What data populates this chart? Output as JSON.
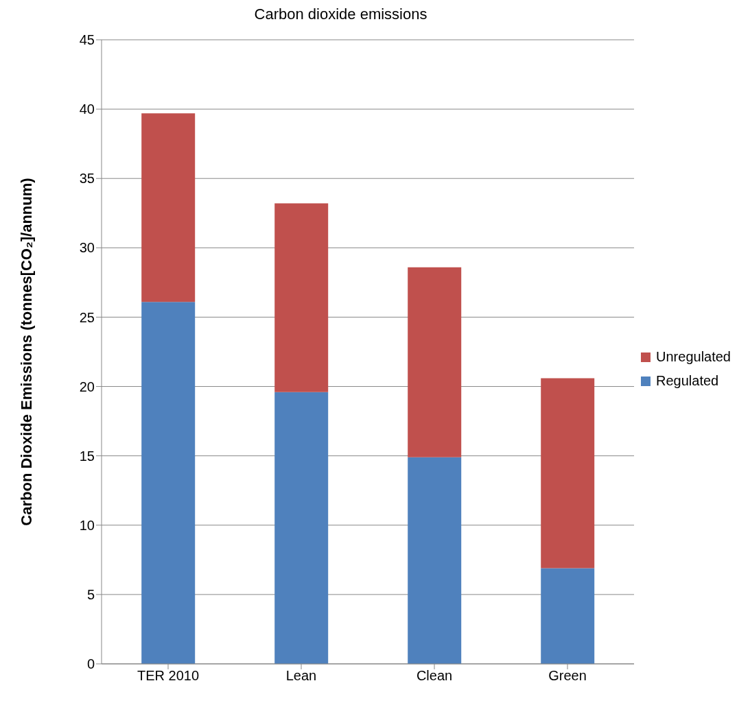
{
  "chart_data": {
    "type": "bar",
    "title": "Carbon dioxide emissions",
    "ylabel": "Carbon Dioxide Emissions  (tonnes[CO₂]/annum)",
    "categories": [
      "TER 2010",
      "Lean",
      "Clean",
      "Green"
    ],
    "stacked": true,
    "series": [
      {
        "name": "Regulated",
        "color": "#4f81bd",
        "values": [
          26.1,
          19.6,
          14.9,
          6.9
        ]
      },
      {
        "name": "Unregulated",
        "color": "#c0504d",
        "values": [
          13.6,
          13.6,
          13.7,
          13.7
        ]
      }
    ],
    "ylim": [
      0,
      45
    ],
    "yticks": [
      0,
      5,
      10,
      15,
      20,
      25,
      30,
      35,
      40,
      45
    ],
    "grid": "y",
    "legend": "right"
  }
}
